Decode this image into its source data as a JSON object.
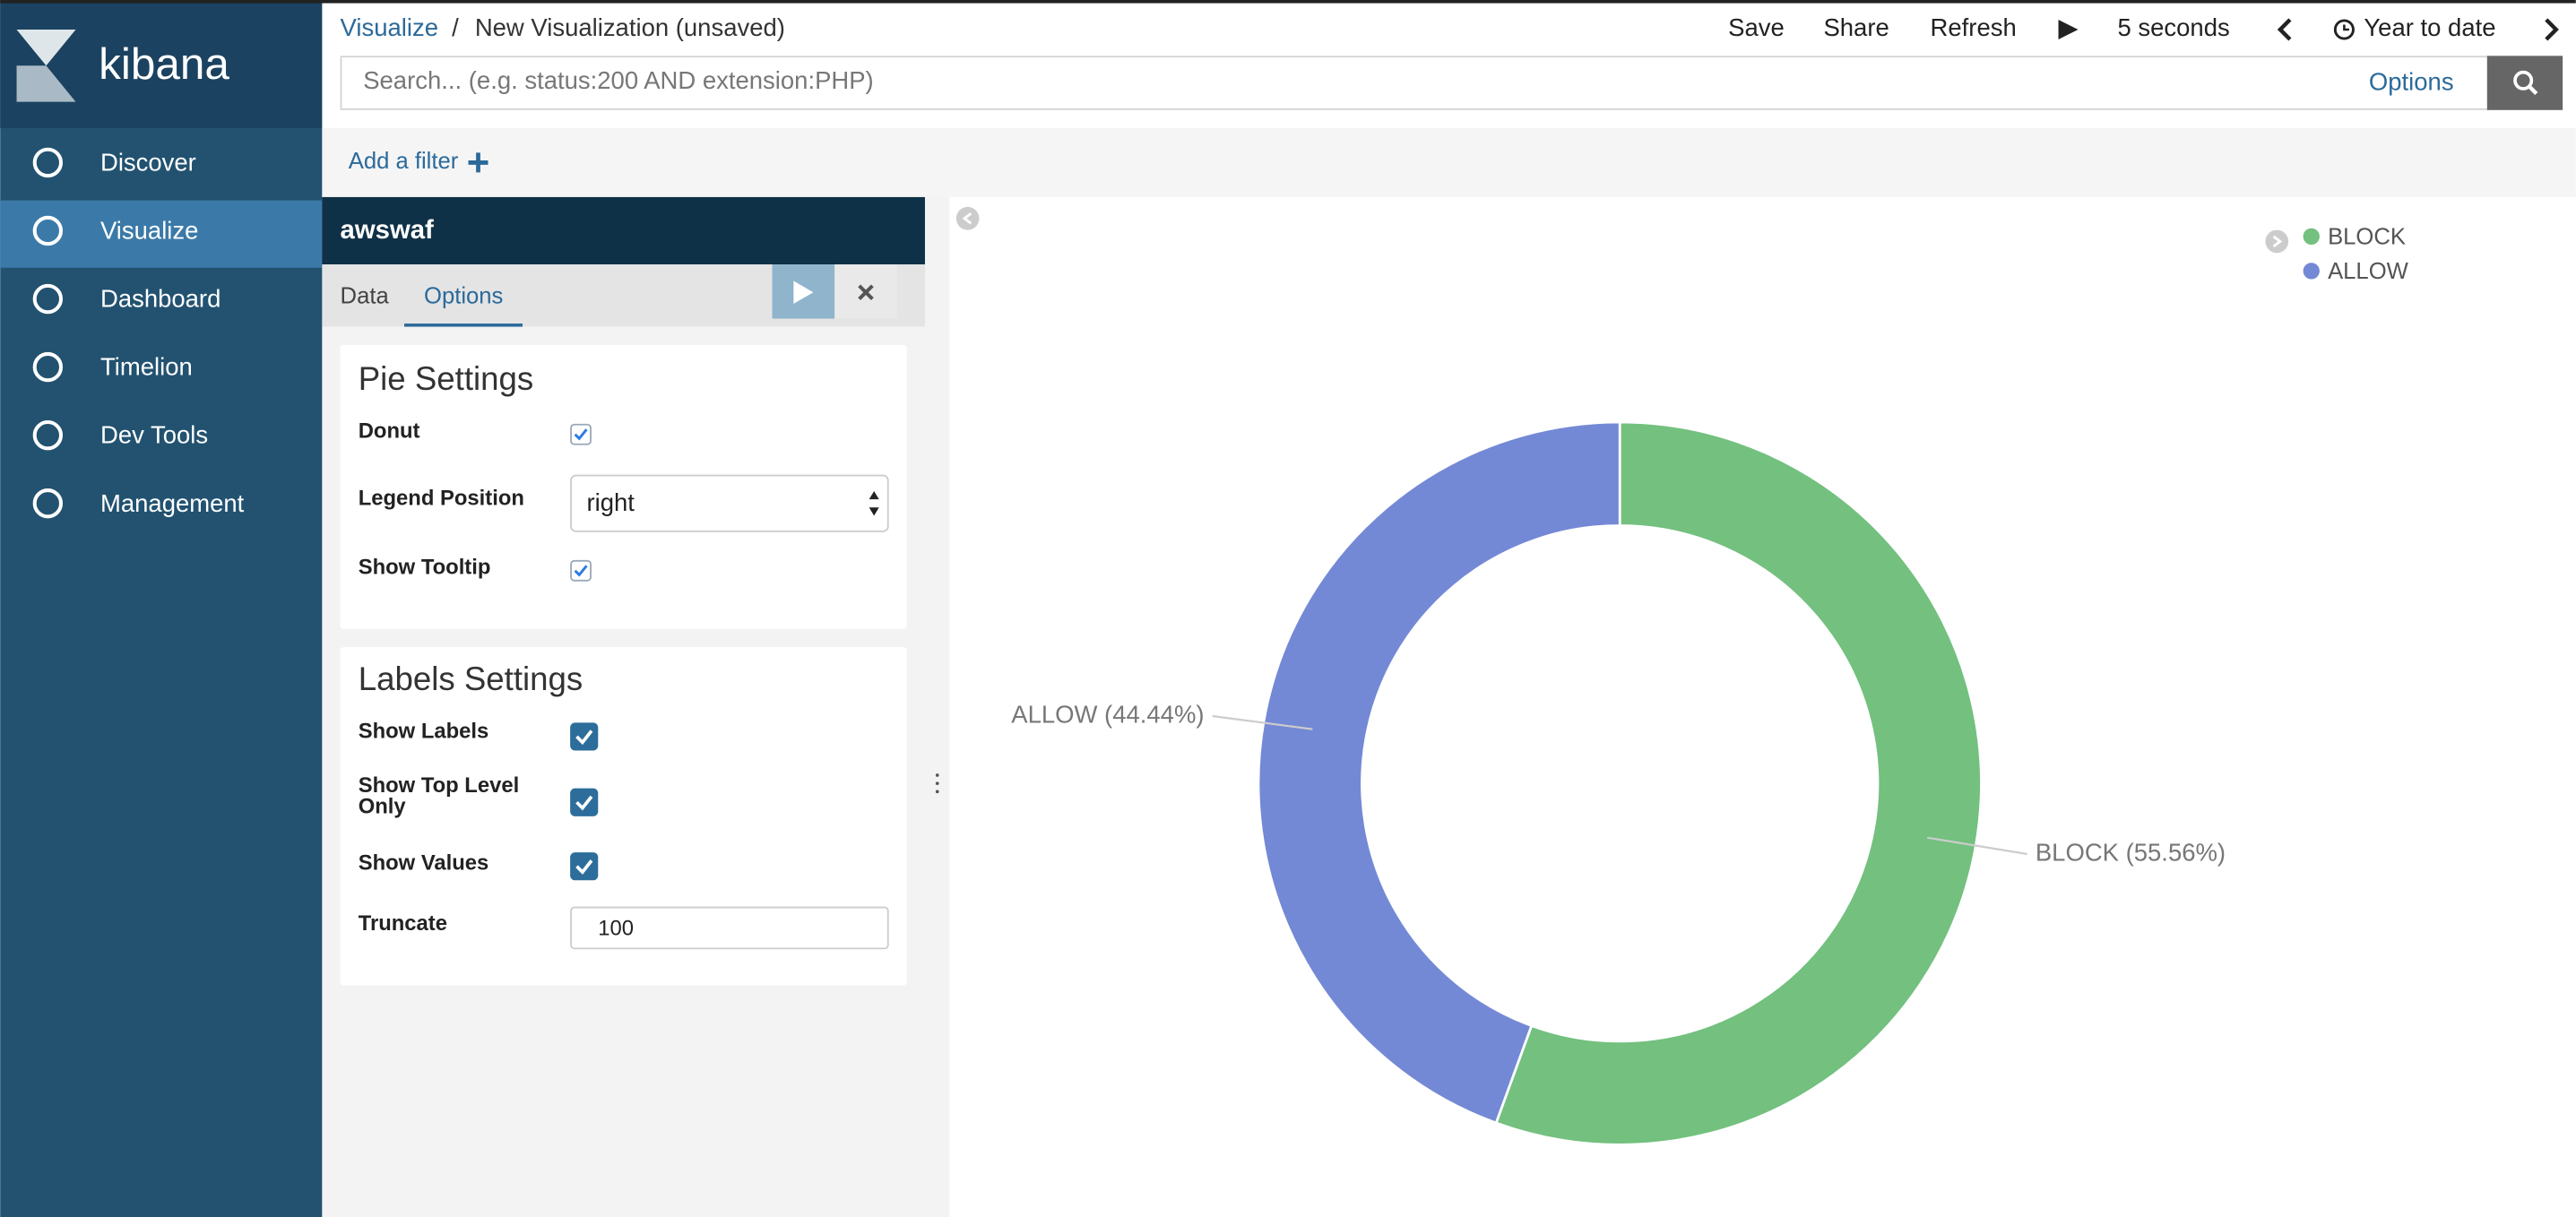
{
  "sidebar": {
    "logo": "kibana",
    "items": [
      "Discover",
      "Visualize",
      "Dashboard",
      "Timelion",
      "Dev Tools",
      "Management"
    ]
  },
  "header": {
    "breadcrumb": [
      "Visualize",
      "New Visualization (unsaved)"
    ],
    "separator": "/",
    "actions": [
      "Save",
      "Share",
      "Refresh"
    ],
    "interval": "5 seconds",
    "time_range": "Year to date",
    "search_placeholder": "Search... (e.g. status:200 AND extension:PHP)",
    "options": "Options"
  },
  "filter_bar": {
    "add_filter": "Add a filter"
  },
  "editor": {
    "index": "awswaf",
    "tabs": [
      "Data",
      "Options"
    ],
    "pie_settings": {
      "title": "Pie Settings",
      "donut": "Donut",
      "legend_position": "Legend Position",
      "legend_position_value": "right",
      "show_tooltip": "Show Tooltip"
    },
    "labels_settings": {
      "title": "Labels Settings",
      "show_labels": "Show Labels",
      "show_top_level": "Show Top Level Only",
      "show_values": "Show Values",
      "truncate": "Truncate",
      "truncate_value": 100
    }
  },
  "chart_data": {
    "type": "pie",
    "donut": true,
    "legend": "top-right",
    "categories": [
      "BLOCK",
      "ALLOW"
    ],
    "values": [
      55.56,
      44.44
    ],
    "value_labels": [
      "BLOCK (55.56%)",
      "ALLOW (44.44%)"
    ],
    "colors": [
      "#73c07f",
      "#7489d5"
    ]
  }
}
